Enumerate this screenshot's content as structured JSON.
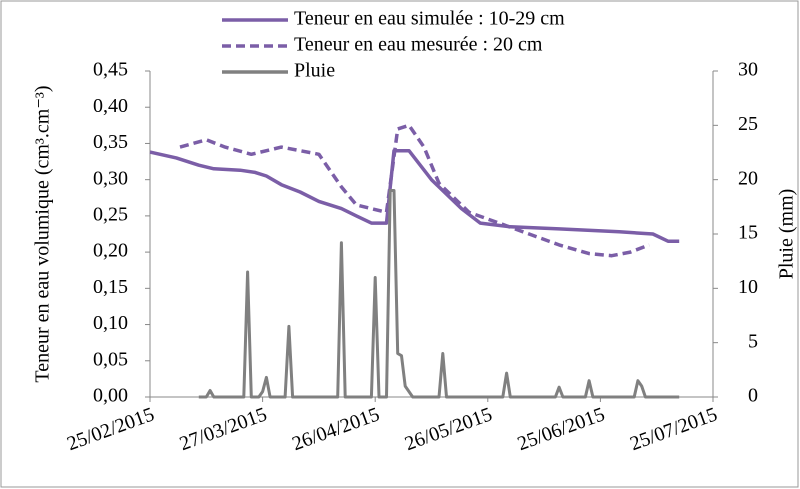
{
  "chart_data": {
    "type": "line",
    "ylabel": "Teneur en eau volumique (cm³.cm⁻³)",
    "y2label": "Pluie (mm)",
    "xlim": [
      "2015-02-25",
      "2015-07-25"
    ],
    "xticks": [
      {
        "value": "2015-02-25",
        "label": "25/02/2015"
      },
      {
        "value": "2015-03-27",
        "label": "27/03/2015"
      },
      {
        "value": "2015-04-26",
        "label": "26/04/2015"
      },
      {
        "value": "2015-05-26",
        "label": "26/05/2015"
      },
      {
        "value": "2015-06-25",
        "label": "25/06/2015"
      },
      {
        "value": "2015-07-25",
        "label": "25/07/2015"
      }
    ],
    "ylim": [
      0,
      0.45
    ],
    "yticks": [
      {
        "value": 0,
        "label": "0,00"
      },
      {
        "value": 0.05,
        "label": "0,05"
      },
      {
        "value": 0.1,
        "label": "0,10"
      },
      {
        "value": 0.15,
        "label": "0,15"
      },
      {
        "value": 0.2,
        "label": "0,20"
      },
      {
        "value": 0.25,
        "label": "0,25"
      },
      {
        "value": 0.3,
        "label": "0,30"
      },
      {
        "value": 0.35,
        "label": "0,35"
      },
      {
        "value": 0.4,
        "label": "0,40"
      },
      {
        "value": 0.45,
        "label": "0,45"
      }
    ],
    "y2lim": [
      0,
      30
    ],
    "y2ticks": [
      0,
      5,
      10,
      15,
      20,
      25,
      30
    ],
    "legend": "top",
    "series": [
      {
        "name": "Teneur en eau simulée : 10-29 cm",
        "color": "#7b5ea7",
        "style": "solid",
        "x": [
          "2015-02-25",
          "2015-03-04",
          "2015-03-10",
          "2015-03-14",
          "2015-03-21",
          "2015-03-25",
          "2015-03-28",
          "2015-04-01",
          "2015-04-06",
          "2015-04-11",
          "2015-04-17",
          "2015-04-21",
          "2015-04-25",
          "2015-04-29",
          "2015-05-01",
          "2015-05-05",
          "2015-05-11",
          "2015-05-19",
          "2015-05-24",
          "2015-06-01",
          "2015-06-14",
          "2015-06-30",
          "2015-07-09",
          "2015-07-13",
          "2015-07-16"
        ],
        "values": [
          0.338,
          0.33,
          0.32,
          0.315,
          0.313,
          0.31,
          0.305,
          0.293,
          0.283,
          0.27,
          0.26,
          0.25,
          0.24,
          0.24,
          0.34,
          0.34,
          0.3,
          0.26,
          0.24,
          0.235,
          0.232,
          0.228,
          0.225,
          0.215,
          0.215
        ]
      },
      {
        "name": "Teneur en eau mesurée : 20 cm",
        "color": "#7b5ea7",
        "style": "dashed",
        "x": [
          "2015-03-05",
          "2015-03-12",
          "2015-03-17",
          "2015-03-24",
          "2015-04-01",
          "2015-04-06",
          "2015-04-11",
          "2015-04-17",
          "2015-04-21",
          "2015-04-29",
          "2015-05-02",
          "2015-05-05",
          "2015-05-09",
          "2015-05-13",
          "2015-05-21",
          "2015-05-29",
          "2015-06-06",
          "2015-06-14",
          "2015-06-22",
          "2015-06-28",
          "2015-07-03",
          "2015-07-08"
        ],
        "values": [
          0.345,
          0.355,
          0.345,
          0.335,
          0.345,
          0.34,
          0.335,
          0.29,
          0.265,
          0.255,
          0.37,
          0.375,
          0.345,
          0.295,
          0.255,
          0.24,
          0.225,
          0.21,
          0.198,
          0.195,
          0.2,
          0.21
        ]
      },
      {
        "name": "Pluie",
        "color": "#808080",
        "style": "solid",
        "axis": "y2",
        "x": [
          "2015-03-10",
          "2015-03-12",
          "2015-03-13",
          "2015-03-14",
          "2015-03-22",
          "2015-03-23",
          "2015-03-24",
          "2015-03-26",
          "2015-03-27",
          "2015-03-28",
          "2015-03-29",
          "2015-04-02",
          "2015-04-03",
          "2015-04-04",
          "2015-04-16",
          "2015-04-17",
          "2015-04-18",
          "2015-04-25",
          "2015-04-26",
          "2015-04-27",
          "2015-04-29",
          "2015-04-30",
          "2015-05-01",
          "2015-05-02",
          "2015-05-03",
          "2015-05-04",
          "2015-05-06",
          "2015-05-13",
          "2015-05-14",
          "2015-05-15",
          "2015-05-30",
          "2015-05-31",
          "2015-06-01",
          "2015-06-13",
          "2015-06-14",
          "2015-06-15",
          "2015-06-21",
          "2015-06-22",
          "2015-06-23",
          "2015-07-04",
          "2015-07-05",
          "2015-07-06",
          "2015-07-07",
          "2015-07-16"
        ],
        "values": [
          0,
          0,
          0.6,
          0,
          0,
          11.5,
          0,
          0,
          0.5,
          1.8,
          0,
          0,
          6.5,
          0,
          0,
          14.2,
          0,
          0,
          11,
          0,
          0,
          19,
          19,
          4,
          3.8,
          1,
          0,
          0,
          4,
          0,
          0,
          2.2,
          0,
          0,
          0.9,
          0,
          0,
          1.5,
          0,
          0,
          1.5,
          1,
          0,
          0
        ]
      }
    ]
  }
}
